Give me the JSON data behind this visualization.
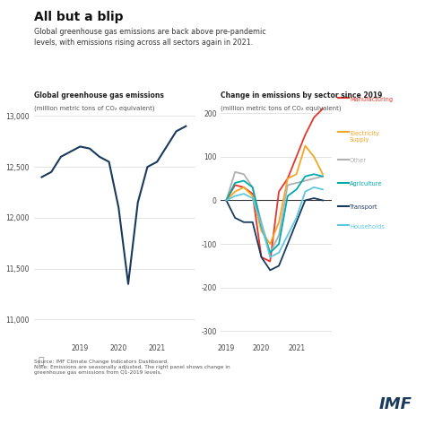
{
  "title": "All but a blip",
  "subtitle": "Global greenhouse gas emissions are back above pre-pandemic\nlevels, with emissions rising across all sectors again in 2021.",
  "left_title": "Global greenhouse gas emissions",
  "left_subtitle": "(million metric tons of CO₂ equivalent)",
  "right_title": "Change in emissions by sector since 2019",
  "right_subtitle": "(million metric tons of CO₂ equivalent)",
  "source": "Source: IMF Climate Change Indicators Dashboard.\nNote: Emissions are seasonally adjusted. The right panel shows change in\ngreenhouse gas emissions from Q1-2019 levels.",
  "imf_label": "IMF",
  "left_line": {
    "x": [
      2018.0,
      2018.25,
      2018.5,
      2018.75,
      2019.0,
      2019.25,
      2019.5,
      2019.75,
      2020.0,
      2020.25,
      2020.5,
      2020.75,
      2021.0,
      2021.25,
      2021.5,
      2021.75
    ],
    "y": [
      12400,
      12450,
      12600,
      12650,
      12700,
      12680,
      12600,
      12550,
      12100,
      11350,
      12150,
      12500,
      12550,
      12700,
      12850,
      12900
    ],
    "color": "#1a3a5c"
  },
  "right_lines": {
    "Manufacturing": {
      "x": [
        2019.0,
        2019.25,
        2019.5,
        2019.75,
        2020.0,
        2020.25,
        2020.5,
        2020.75,
        2021.0,
        2021.25,
        2021.5,
        2021.75
      ],
      "y": [
        0,
        35,
        30,
        15,
        -130,
        -140,
        20,
        50,
        100,
        150,
        190,
        210
      ],
      "color": "#e8342a"
    },
    "Electricity Supply": {
      "x": [
        2019.0,
        2019.25,
        2019.5,
        2019.75,
        2020.0,
        2020.25,
        2020.5,
        2020.75,
        2021.0,
        2021.25,
        2021.5,
        2021.75
      ],
      "y": [
        0,
        20,
        30,
        10,
        -70,
        -100,
        -50,
        50,
        60,
        125,
        100,
        60
      ],
      "color": "#f5a623"
    },
    "Other": {
      "x": [
        2019.0,
        2019.25,
        2019.5,
        2019.75,
        2020.0,
        2020.25,
        2020.5,
        2020.75,
        2021.0,
        2021.25,
        2021.5,
        2021.75
      ],
      "y": [
        0,
        65,
        60,
        30,
        -50,
        -120,
        -80,
        35,
        40,
        45,
        50,
        55
      ],
      "color": "#b0b0b0"
    },
    "Agriculture": {
      "x": [
        2019.0,
        2019.25,
        2019.5,
        2019.75,
        2020.0,
        2020.25,
        2020.5,
        2020.75,
        2021.0,
        2021.25,
        2021.5,
        2021.75
      ],
      "y": [
        0,
        40,
        45,
        30,
        -60,
        -120,
        -100,
        10,
        25,
        55,
        60,
        55
      ],
      "color": "#00aaaa"
    },
    "Transport": {
      "x": [
        2019.0,
        2019.25,
        2019.5,
        2019.75,
        2020.0,
        2020.25,
        2020.5,
        2020.75,
        2021.0,
        2021.25,
        2021.5,
        2021.75
      ],
      "y": [
        0,
        -40,
        -50,
        -50,
        -130,
        -160,
        -150,
        -100,
        -50,
        0,
        5,
        0
      ],
      "color": "#1a3a5c"
    },
    "Households": {
      "x": [
        2019.0,
        2019.25,
        2019.5,
        2019.75,
        2020.0,
        2020.25,
        2020.5,
        2020.75,
        2021.0,
        2021.25,
        2021.5,
        2021.75
      ],
      "y": [
        0,
        10,
        15,
        5,
        -55,
        -130,
        -120,
        -80,
        -40,
        20,
        30,
        25
      ],
      "color": "#5ec8e0"
    }
  },
  "legend_order": [
    "Manufacturing",
    "Electricity\nSupply",
    "Other",
    "Agriculture",
    "Transport",
    "Households"
  ],
  "legend_keys": [
    "Manufacturing",
    "Electricity Supply",
    "Other",
    "Agriculture",
    "Transport",
    "Households"
  ],
  "legend_colors": {
    "Manufacturing": "#e8342a",
    "Electricity Supply": "#f5a623",
    "Other": "#b0b0b0",
    "Agriculture": "#00aaaa",
    "Transport": "#1a3a5c",
    "Households": "#5ec8e0"
  },
  "background_color": "#ffffff",
  "grid_color": "#d8d8d8",
  "left_ylim": [
    10800,
    13200
  ],
  "left_yticks": [
    11000,
    11500,
    12000,
    12500,
    13000
  ],
  "right_ylim": [
    -320,
    240
  ],
  "right_yticks": [
    -300,
    -200,
    -100,
    0,
    100,
    200
  ],
  "left_xlim": [
    2017.8,
    2022.0
  ],
  "right_xlim": [
    2018.85,
    2022.0
  ],
  "xticks_left": [
    2019,
    2020,
    2021
  ],
  "xticks_right": [
    2019,
    2020,
    2021
  ]
}
